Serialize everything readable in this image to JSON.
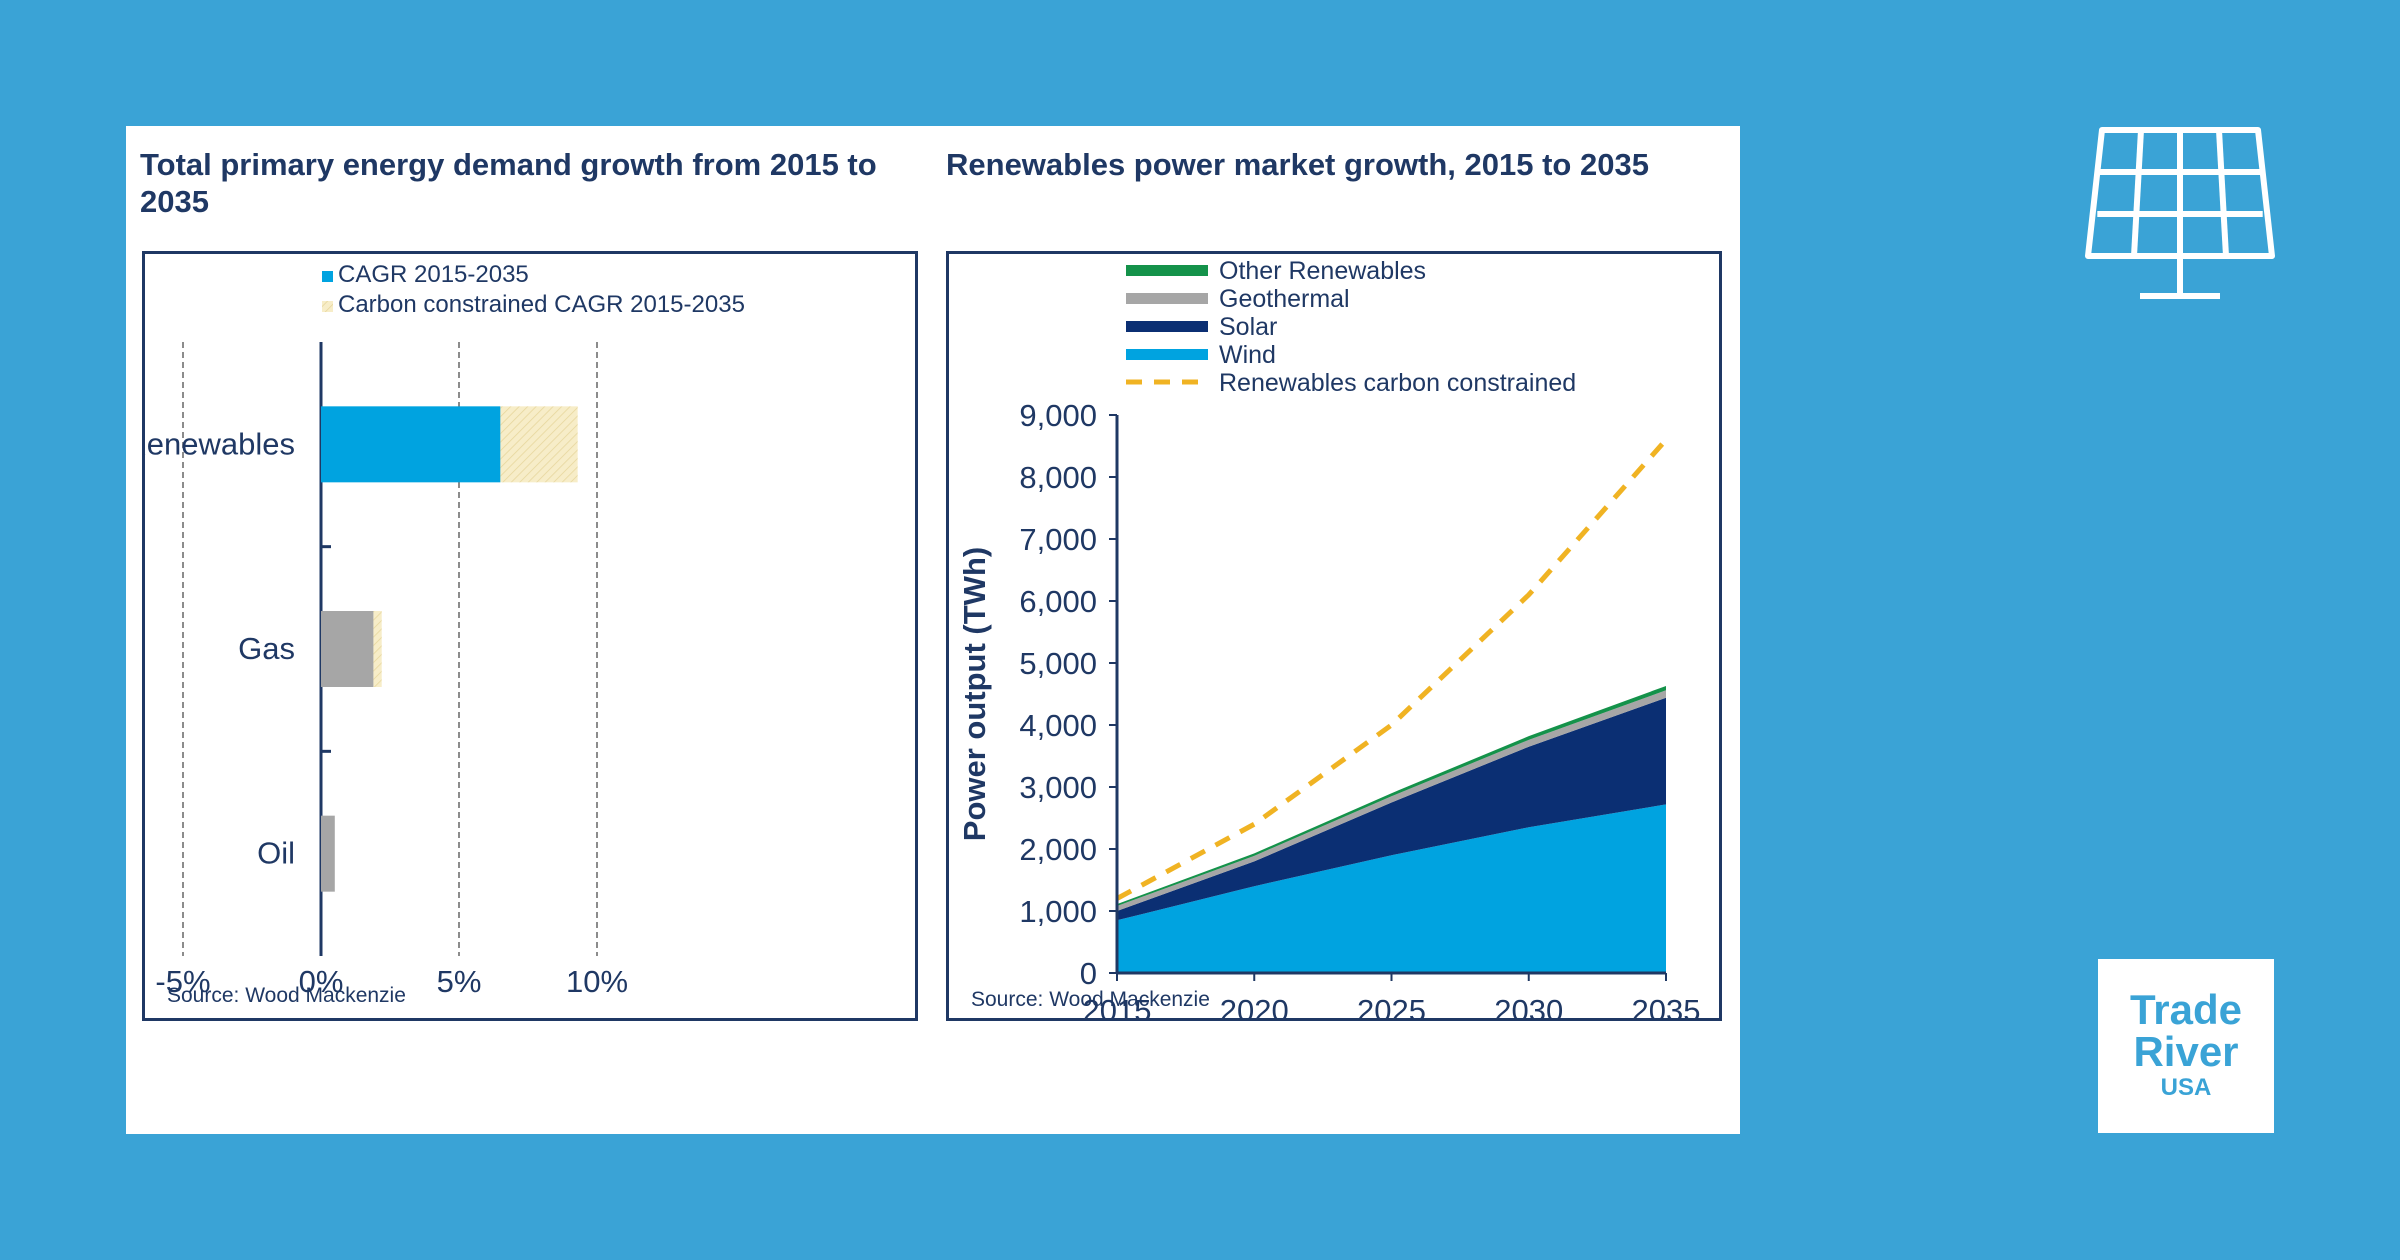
{
  "chart_data": [
    {
      "type": "bar",
      "orientation": "horizontal",
      "stacked": true,
      "title": "Total primary energy demand growth from 2015 to 2035",
      "categories": [
        "Renewables",
        "Gas",
        "Oil"
      ],
      "series": [
        {
          "name": "CAGR 2015-2035",
          "values": [
            6.5,
            1.9,
            0.5
          ]
        },
        {
          "name": "Carbon constrained CAGR 2015-2035",
          "values": [
            2.8,
            0.3,
            0.0
          ]
        }
      ],
      "xlim": [
        -5,
        10
      ],
      "xticks": [
        -5,
        0,
        5,
        10
      ],
      "xtick_labels": [
        "-5%",
        "0%",
        "5%",
        "10%"
      ],
      "grid": true,
      "legend": "top",
      "source": "Source: Wood Mackenzie",
      "colors": {
        "cagr": "#00a3e0",
        "renewables_cagr": "#00a3e0",
        "other_cagr": "#a6a6a6",
        "constrained": "#f7edc8",
        "axis": "#1f3864"
      }
    },
    {
      "type": "area",
      "stacked": true,
      "title": "Renewables power market growth, 2015 to 2035",
      "x": [
        2015,
        2020,
        2025,
        2030,
        2035
      ],
      "series": [
        {
          "name": "Wind",
          "values": [
            850,
            1400,
            1900,
            2350,
            2720
          ]
        },
        {
          "name": "Solar",
          "values": [
            150,
            400,
            850,
            1300,
            1720
          ]
        },
        {
          "name": "Geothermal",
          "values": [
            80,
            90,
            100,
            110,
            120
          ]
        },
        {
          "name": "Other Renewables",
          "values": [
            30,
            40,
            50,
            60,
            70
          ]
        }
      ],
      "line_series": {
        "name": "Renewables carbon constrained",
        "x": [
          2015,
          2020,
          2025,
          2030,
          2035
        ],
        "values": [
          1200,
          2400,
          4000,
          6100,
          8600
        ]
      },
      "ylabel": "Power output (TWh)",
      "ylim": [
        0,
        9000
      ],
      "yticks": [
        0,
        1000,
        2000,
        3000,
        4000,
        5000,
        6000,
        7000,
        8000,
        9000
      ],
      "ytick_labels": [
        "0",
        "1,000",
        "2,000",
        "3,000",
        "4,000",
        "5,000",
        "6,000",
        "7,000",
        "8,000",
        "9,000"
      ],
      "xtick_labels": [
        "2015",
        "2020",
        "2025",
        "2030",
        "2035"
      ],
      "legend": "top-left",
      "source": "Source: Wood Mackenzie",
      "colors": {
        "Wind": "#00a3e0",
        "Solar": "#0b2f73",
        "Geothermal": "#a6a6a6",
        "Other Renewables": "#14924a",
        "constrained": "#f0b323",
        "axis": "#1f3864"
      }
    }
  ],
  "branding": {
    "logo_line1": "Trade",
    "logo_line2": "River",
    "logo_line3": "USA",
    "icon": "solar-panel-icon",
    "background": "#3aa3d6"
  }
}
